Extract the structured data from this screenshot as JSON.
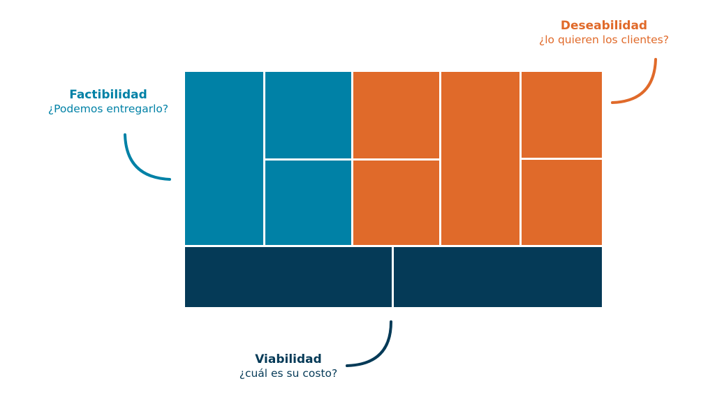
{
  "colors": {
    "factibilidad": "#0081a6",
    "deseabilidad": "#e06a2a",
    "viabilidad": "#053a57"
  },
  "factibilidad": {
    "title": "Factibilidad",
    "question": "¿Podemos entregarlo?"
  },
  "deseabilidad": {
    "title": "Deseabilidad",
    "question": "¿lo quieren los clientes?"
  },
  "viabilidad": {
    "title": "Viabilidad",
    "question": "¿cuál es su costo?"
  }
}
